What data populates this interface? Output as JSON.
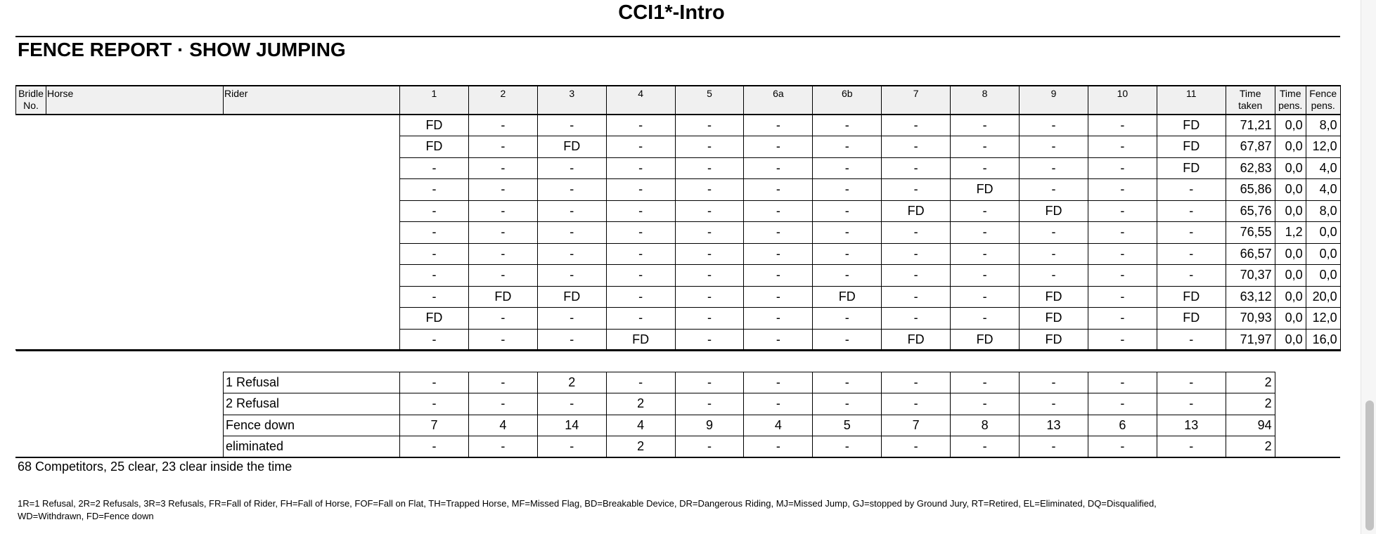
{
  "title": "CCI1*-Intro",
  "heading": "FENCE REPORT · SHOW JUMPING",
  "columns": {
    "bridle": "Bridle No.",
    "horse": "Horse",
    "rider": "Rider",
    "fences": [
      "1",
      "2",
      "3",
      "4",
      "5",
      "6a",
      "6b",
      "7",
      "8",
      "9",
      "10",
      "11"
    ],
    "time_taken": "Time taken",
    "time_pens": "Time pens.",
    "fence_pens": "Fence pens."
  },
  "rows": [
    {
      "fences": [
        "FD",
        "-",
        "-",
        "-",
        "-",
        "-",
        "-",
        "-",
        "-",
        "-",
        "-",
        "FD"
      ],
      "time_taken": "71,21",
      "time_pens": "0,0",
      "fence_pens": "8,0"
    },
    {
      "fences": [
        "FD",
        "-",
        "FD",
        "-",
        "-",
        "-",
        "-",
        "-",
        "-",
        "-",
        "-",
        "FD"
      ],
      "time_taken": "67,87",
      "time_pens": "0,0",
      "fence_pens": "12,0"
    },
    {
      "fences": [
        "-",
        "-",
        "-",
        "-",
        "-",
        "-",
        "-",
        "-",
        "-",
        "-",
        "-",
        "FD"
      ],
      "time_taken": "62,83",
      "time_pens": "0,0",
      "fence_pens": "4,0"
    },
    {
      "fences": [
        "-",
        "-",
        "-",
        "-",
        "-",
        "-",
        "-",
        "-",
        "FD",
        "-",
        "-",
        "-"
      ],
      "time_taken": "65,86",
      "time_pens": "0,0",
      "fence_pens": "4,0"
    },
    {
      "fences": [
        "-",
        "-",
        "-",
        "-",
        "-",
        "-",
        "-",
        "FD",
        "-",
        "FD",
        "-",
        "-"
      ],
      "time_taken": "65,76",
      "time_pens": "0,0",
      "fence_pens": "8,0"
    },
    {
      "fences": [
        "-",
        "-",
        "-",
        "-",
        "-",
        "-",
        "-",
        "-",
        "-",
        "-",
        "-",
        "-"
      ],
      "time_taken": "76,55",
      "time_pens": "1,2",
      "fence_pens": "0,0"
    },
    {
      "fences": [
        "-",
        "-",
        "-",
        "-",
        "-",
        "-",
        "-",
        "-",
        "-",
        "-",
        "-",
        "-"
      ],
      "time_taken": "66,57",
      "time_pens": "0,0",
      "fence_pens": "0,0"
    },
    {
      "fences": [
        "-",
        "-",
        "-",
        "-",
        "-",
        "-",
        "-",
        "-",
        "-",
        "-",
        "-",
        "-"
      ],
      "time_taken": "70,37",
      "time_pens": "0,0",
      "fence_pens": "0,0"
    },
    {
      "fences": [
        "-",
        "FD",
        "FD",
        "-",
        "-",
        "-",
        "FD",
        "-",
        "-",
        "FD",
        "-",
        "FD"
      ],
      "time_taken": "63,12",
      "time_pens": "0,0",
      "fence_pens": "20,0"
    },
    {
      "fences": [
        "FD",
        "-",
        "-",
        "-",
        "-",
        "-",
        "-",
        "-",
        "-",
        "FD",
        "-",
        "FD"
      ],
      "time_taken": "70,93",
      "time_pens": "0,0",
      "fence_pens": "12,0"
    },
    {
      "fences": [
        "-",
        "-",
        "-",
        "FD",
        "-",
        "-",
        "-",
        "FD",
        "FD",
        "FD",
        "-",
        "-"
      ],
      "time_taken": "71,97",
      "time_pens": "0,0",
      "fence_pens": "16,0"
    }
  ],
  "summary": [
    {
      "label": "1 Refusal",
      "values": [
        "-",
        "-",
        "2",
        "-",
        "-",
        "-",
        "-",
        "-",
        "-",
        "-",
        "-",
        "-"
      ],
      "total": "2"
    },
    {
      "label": "2 Refusal",
      "values": [
        "-",
        "-",
        "-",
        "2",
        "-",
        "-",
        "-",
        "-",
        "-",
        "-",
        "-",
        "-"
      ],
      "total": "2"
    },
    {
      "label": "Fence down",
      "values": [
        "7",
        "4",
        "14",
        "4",
        "9",
        "4",
        "5",
        "7",
        "8",
        "13",
        "6",
        "13"
      ],
      "total": "94"
    },
    {
      "label": "eliminated",
      "values": [
        "-",
        "-",
        "-",
        "2",
        "-",
        "-",
        "-",
        "-",
        "-",
        "-",
        "-",
        "-"
      ],
      "total": "2"
    }
  ],
  "competitors": "68 Competitors, 25 clear, 23 clear inside the time",
  "legend_line1": "1R=1 Refusal, 2R=2 Refusals, 3R=3 Refusals, FR=Fall of Rider, FH=Fall of Horse, FOF=Fall on Flat, TH=Trapped Horse, MF=Missed Flag, BD=Breakable Device, DR=Dangerous Riding, MJ=Missed Jump, GJ=stopped by Ground Jury, RT=Retired, EL=Eliminated, DQ=Disqualified,",
  "legend_line2": "WD=Withdrawn, FD=Fence down"
}
